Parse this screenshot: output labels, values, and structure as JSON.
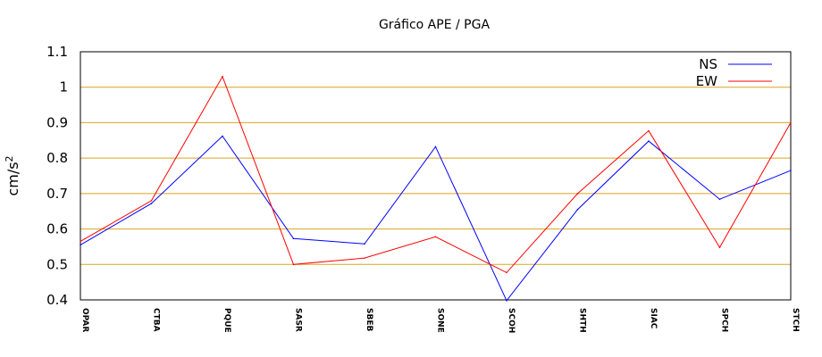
{
  "chart_data": {
    "type": "line",
    "title": "Gráfico  APE / PGA",
    "ylabel_base": "cm/s",
    "ylabel_exp": "2",
    "xlabel": "",
    "ylim": [
      0.4,
      1.1
    ],
    "yticks": [
      "0.4",
      "0.5",
      "0.6",
      "0.7",
      "0.8",
      "0.9",
      "1",
      "1.1"
    ],
    "grid": true,
    "legend_position": "top-right",
    "categories": [
      "OPAR",
      "CTBA",
      "PQUE",
      "SASR",
      "SBEB",
      "SONE",
      "SCOH",
      "SHTH",
      "SIAC",
      "SPCH",
      "STCH"
    ],
    "series": [
      {
        "name": "NS",
        "color": "#0000ff",
        "values": [
          0.555,
          0.672,
          0.862,
          0.573,
          0.558,
          0.832,
          0.398,
          0.655,
          0.848,
          0.684,
          0.765
        ]
      },
      {
        "name": "EW",
        "color": "#ff0000",
        "values": [
          0.565,
          0.68,
          1.03,
          0.5,
          0.518,
          0.578,
          0.477,
          0.7,
          0.877,
          0.548,
          0.9
        ]
      }
    ],
    "gridline_color": "#daa520"
  }
}
